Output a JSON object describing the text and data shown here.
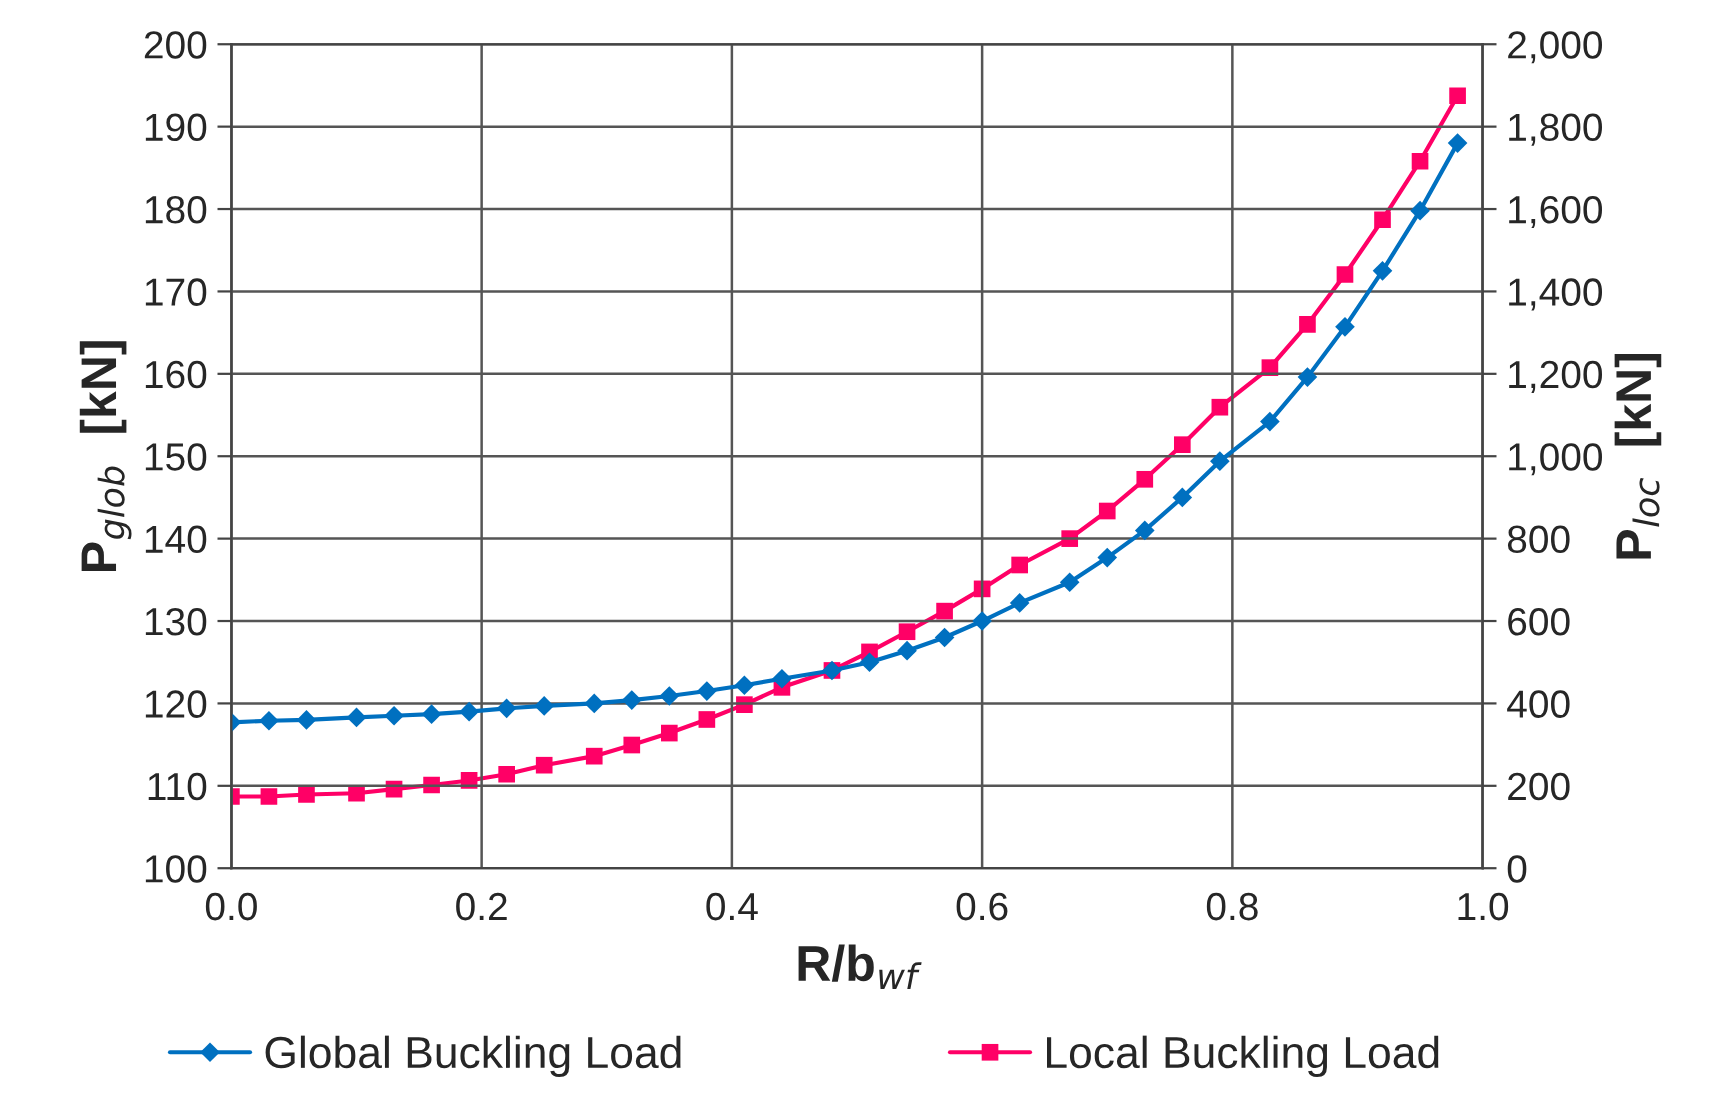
{
  "chart_data": {
    "type": "line",
    "xlabel": "R/b$_{wf}$",
    "ylabel": "P$_{glob}$  [kN]",
    "y2label": "P$_{loc}$  [kN]",
    "x": [
      0,
      0.03,
      0.06,
      0.1,
      0.13,
      0.16,
      0.19,
      0.22,
      0.25,
      0.29,
      0.32,
      0.35,
      0.38,
      0.41,
      0.44,
      0.48,
      0.51,
      0.54,
      0.57,
      0.6,
      0.63,
      0.67,
      0.7,
      0.73,
      0.76,
      0.79,
      0.83,
      0.86,
      0.89,
      0.92,
      0.95,
      0.98
    ],
    "series": [
      {
        "name": "Global Buckling Load",
        "color": "#0070c0",
        "marker": "diamond",
        "values": [
          117.7,
          117.9,
          118.0,
          118.3,
          118.5,
          118.7,
          119.0,
          119.4,
          119.7,
          120.0,
          120.4,
          120.9,
          121.5,
          122.2,
          123.0,
          124.0,
          125.0,
          126.4,
          128.0,
          130.0,
          132.2,
          134.7,
          137.7,
          141.0,
          145.0,
          149.4,
          154.2,
          159.6,
          165.7,
          172.5,
          179.8,
          188.0
        ]
      },
      {
        "name": "Local Buckling Load",
        "color": "#ff0066",
        "marker": "square",
        "axis": "y2",
        "values": [
          174,
          174,
          179,
          182,
          192,
          202,
          213,
          228,
          250,
          272,
          299,
          328,
          361,
          397,
          439,
          480,
          525,
          574,
          624,
          678,
          736,
          800,
          867,
          944,
          1028,
          1119,
          1215,
          1320,
          1441,
          1574,
          1716,
          1875
        ]
      }
    ],
    "xlim": [
      0,
      1
    ],
    "xticks": [
      {
        "value": 0,
        "label": "0.0"
      },
      {
        "value": 0.2,
        "label": "0.2"
      },
      {
        "value": 0.4,
        "label": "0.4"
      },
      {
        "value": 0.6,
        "label": "0.6"
      },
      {
        "value": 0.8,
        "label": "0.8"
      },
      {
        "value": 1,
        "label": "1.0"
      }
    ],
    "ylim": [
      100,
      200
    ],
    "yticks": [
      100,
      110,
      120,
      130,
      140,
      150,
      160,
      170,
      180,
      190,
      200
    ],
    "y2lim": [
      0,
      2000
    ],
    "y2ticks": [
      0,
      200,
      400,
      600,
      800,
      {
        "value": 1000,
        "label": "1,000"
      },
      {
        "value": 1200,
        "label": "1,200"
      },
      {
        "value": 1400,
        "label": "1,400"
      },
      {
        "value": 1600,
        "label": "1,600"
      },
      {
        "value": 1800,
        "label": "1,800"
      },
      {
        "value": 2000,
        "label": "2,000"
      }
    ],
    "grid": true,
    "legend": "bottom",
    "line_style": "solid"
  }
}
